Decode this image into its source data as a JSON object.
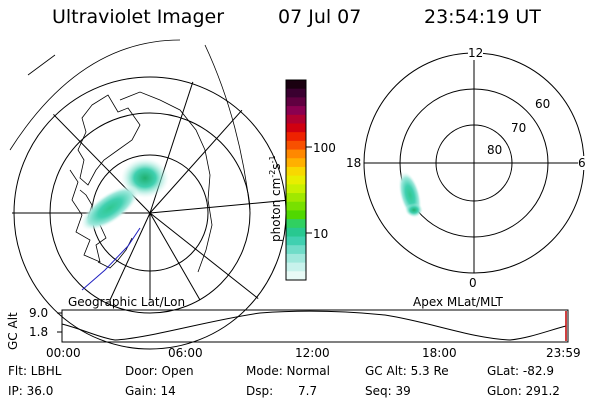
{
  "header": {
    "instrument": "Ultraviolet Imager",
    "date": "07 Jul 07",
    "time": "23:54:19 UT"
  },
  "geographic_panel": {
    "label": "Geographic Lat/Lon"
  },
  "apex_panel": {
    "label": "Apex MLat/MLT",
    "mlt_labels": [
      "12",
      "18",
      "6",
      "0"
    ],
    "mlat_labels": [
      "60",
      "70",
      "80"
    ]
  },
  "colorbar": {
    "unit_label": "photon cm",
    "unit_exp1": "-2",
    "unit_s": "s",
    "unit_exp2": "-1",
    "ticks": [
      "100",
      "10"
    ],
    "colors": [
      "#1a0010",
      "#3a0030",
      "#600040",
      "#8a0050",
      "#b00030",
      "#d00010",
      "#ee2200",
      "#f85000",
      "#ff8800",
      "#ffb000",
      "#f8d800",
      "#e8ee00",
      "#c8f000",
      "#a0e800",
      "#78e000",
      "#50d800",
      "#30d060",
      "#28c890",
      "#40d0b0",
      "#70dcc8",
      "#a0e8dc",
      "#c8f2ec",
      "#e8faf6"
    ]
  },
  "altitude_plot": {
    "axis_label": "GC Alt",
    "y_max": "9.0",
    "y_min": "1.8",
    "x_ticks": [
      "00:00",
      "06:00",
      "12:00",
      "18:00",
      "23:59"
    ]
  },
  "info": {
    "row1": {
      "filter": "Flt: LBHL",
      "door": "Door: Open",
      "mode": "Mode: Normal",
      "gc_alt": "GC Alt: 5.3 Re",
      "glat": "GLat: -82.9"
    },
    "row2": {
      "ip": "IP: 36.0",
      "gain": "Gain: 14",
      "dsp_label": "Dsp:",
      "dsp_value": "7.7",
      "seq": "Seq: 39",
      "glon": "GLon: 291.2"
    }
  }
}
